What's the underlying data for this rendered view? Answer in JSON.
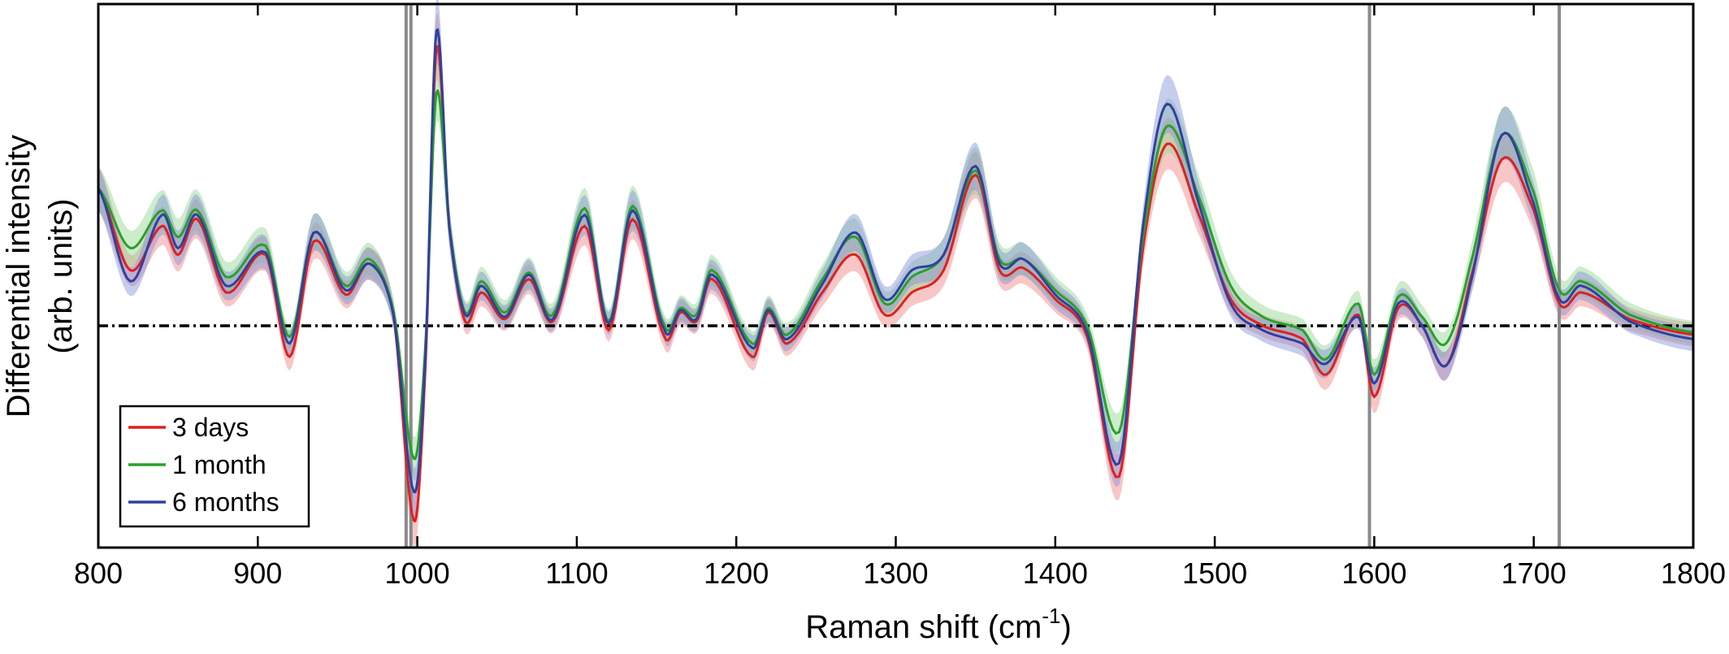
{
  "chart_data": {
    "type": "line",
    "xlabel": "Raman shift (cm",
    "xlabel_sup": "-1",
    "xlabel_end": ")",
    "ylabel_line1": "Differential intensity",
    "ylabel_line2": "(arb. units)",
    "xlim": [
      800,
      1800
    ],
    "ylim": [
      -1.0,
      1.45
    ],
    "x_ticks": [
      800,
      900,
      1000,
      1100,
      1200,
      1300,
      1400,
      1500,
      1600,
      1700,
      1800
    ],
    "y_ticks_labeled": false,
    "grid": false,
    "legend_position": "bottom-left",
    "reference_line": {
      "y": 0,
      "style": "dash-dot",
      "color": "#000000"
    },
    "vertical_lines": [
      993,
      996,
      1597,
      1716
    ],
    "series": [
      {
        "name": "3 days",
        "color": "#e02020",
        "band_color": "#f08080",
        "points": [
          [
            800,
            0.62
          ],
          [
            820,
            0.25
          ],
          [
            840,
            0.45
          ],
          [
            850,
            0.32
          ],
          [
            862,
            0.48
          ],
          [
            880,
            0.15
          ],
          [
            905,
            0.32
          ],
          [
            920,
            -0.14
          ],
          [
            935,
            0.38
          ],
          [
            955,
            0.14
          ],
          [
            970,
            0.28
          ],
          [
            985,
            0.05
          ],
          [
            998,
            -0.88
          ],
          [
            1005,
            -0.2
          ],
          [
            1012,
            1.25
          ],
          [
            1020,
            0.45
          ],
          [
            1030,
            0.02
          ],
          [
            1040,
            0.15
          ],
          [
            1055,
            0.03
          ],
          [
            1070,
            0.21
          ],
          [
            1085,
            0.02
          ],
          [
            1105,
            0.45
          ],
          [
            1120,
            -0.02
          ],
          [
            1135,
            0.48
          ],
          [
            1155,
            -0.05
          ],
          [
            1165,
            0.06
          ],
          [
            1175,
            0.02
          ],
          [
            1185,
            0.21
          ],
          [
            1210,
            -0.14
          ],
          [
            1220,
            0.06
          ],
          [
            1232,
            -0.08
          ],
          [
            1255,
            0.16
          ],
          [
            1275,
            0.32
          ],
          [
            1293,
            0.05
          ],
          [
            1310,
            0.15
          ],
          [
            1330,
            0.25
          ],
          [
            1350,
            0.68
          ],
          [
            1365,
            0.25
          ],
          [
            1380,
            0.26
          ],
          [
            1400,
            0.12
          ],
          [
            1420,
            -0.05
          ],
          [
            1440,
            -0.68
          ],
          [
            1455,
            0.35
          ],
          [
            1470,
            0.82
          ],
          [
            1490,
            0.5
          ],
          [
            1510,
            0.12
          ],
          [
            1530,
            0.0
          ],
          [
            1555,
            -0.06
          ],
          [
            1570,
            -0.22
          ],
          [
            1590,
            0.05
          ],
          [
            1600,
            -0.32
          ],
          [
            1615,
            0.08
          ],
          [
            1630,
            0.0
          ],
          [
            1645,
            -0.18
          ],
          [
            1660,
            0.2
          ],
          [
            1680,
            0.75
          ],
          [
            1700,
            0.52
          ],
          [
            1716,
            0.1
          ],
          [
            1730,
            0.15
          ],
          [
            1760,
            0.03
          ],
          [
            1800,
            -0.04
          ]
        ]
      },
      {
        "name": "1 month",
        "color": "#2aa02a",
        "band_color": "#8fd48f",
        "points": [
          [
            800,
            0.62
          ],
          [
            820,
            0.35
          ],
          [
            840,
            0.52
          ],
          [
            850,
            0.4
          ],
          [
            862,
            0.52
          ],
          [
            880,
            0.22
          ],
          [
            905,
            0.36
          ],
          [
            920,
            -0.05
          ],
          [
            935,
            0.42
          ],
          [
            955,
            0.18
          ],
          [
            970,
            0.3
          ],
          [
            985,
            0.07
          ],
          [
            998,
            -0.6
          ],
          [
            1005,
            -0.1
          ],
          [
            1012,
            1.05
          ],
          [
            1020,
            0.45
          ],
          [
            1030,
            0.06
          ],
          [
            1040,
            0.2
          ],
          [
            1055,
            0.06
          ],
          [
            1070,
            0.24
          ],
          [
            1085,
            0.05
          ],
          [
            1105,
            0.53
          ],
          [
            1120,
            0.02
          ],
          [
            1135,
            0.54
          ],
          [
            1155,
            0.0
          ],
          [
            1165,
            0.08
          ],
          [
            1175,
            0.05
          ],
          [
            1185,
            0.25
          ],
          [
            1210,
            -0.08
          ],
          [
            1220,
            0.08
          ],
          [
            1232,
            -0.04
          ],
          [
            1255,
            0.22
          ],
          [
            1275,
            0.4
          ],
          [
            1293,
            0.1
          ],
          [
            1310,
            0.22
          ],
          [
            1330,
            0.32
          ],
          [
            1350,
            0.7
          ],
          [
            1365,
            0.3
          ],
          [
            1380,
            0.3
          ],
          [
            1400,
            0.16
          ],
          [
            1420,
            0.0
          ],
          [
            1440,
            -0.48
          ],
          [
            1455,
            0.4
          ],
          [
            1470,
            0.9
          ],
          [
            1490,
            0.58
          ],
          [
            1510,
            0.18
          ],
          [
            1530,
            0.04
          ],
          [
            1555,
            -0.02
          ],
          [
            1570,
            -0.15
          ],
          [
            1590,
            0.1
          ],
          [
            1600,
            -0.22
          ],
          [
            1615,
            0.13
          ],
          [
            1630,
            0.04
          ],
          [
            1645,
            -0.08
          ],
          [
            1660,
            0.27
          ],
          [
            1680,
            0.86
          ],
          [
            1700,
            0.6
          ],
          [
            1716,
            0.16
          ],
          [
            1730,
            0.2
          ],
          [
            1760,
            0.05
          ],
          [
            1800,
            -0.03
          ]
        ]
      },
      {
        "name": "6 months",
        "color": "#3040a0",
        "band_color": "#8090d8",
        "points": [
          [
            800,
            0.62
          ],
          [
            820,
            0.2
          ],
          [
            840,
            0.5
          ],
          [
            850,
            0.35
          ],
          [
            862,
            0.5
          ],
          [
            880,
            0.18
          ],
          [
            905,
            0.33
          ],
          [
            920,
            -0.08
          ],
          [
            935,
            0.42
          ],
          [
            955,
            0.16
          ],
          [
            970,
            0.28
          ],
          [
            985,
            0.05
          ],
          [
            998,
            -0.75
          ],
          [
            1005,
            -0.15
          ],
          [
            1012,
            1.33
          ],
          [
            1020,
            0.45
          ],
          [
            1030,
            0.05
          ],
          [
            1040,
            0.18
          ],
          [
            1055,
            0.04
          ],
          [
            1070,
            0.23
          ],
          [
            1085,
            0.03
          ],
          [
            1105,
            0.5
          ],
          [
            1120,
            0.01
          ],
          [
            1135,
            0.52
          ],
          [
            1155,
            -0.02
          ],
          [
            1165,
            0.07
          ],
          [
            1175,
            0.03
          ],
          [
            1185,
            0.23
          ],
          [
            1210,
            -0.1
          ],
          [
            1220,
            0.07
          ],
          [
            1232,
            -0.06
          ],
          [
            1255,
            0.2
          ],
          [
            1275,
            0.42
          ],
          [
            1293,
            0.12
          ],
          [
            1310,
            0.25
          ],
          [
            1330,
            0.32
          ],
          [
            1350,
            0.72
          ],
          [
            1365,
            0.28
          ],
          [
            1380,
            0.3
          ],
          [
            1400,
            0.14
          ],
          [
            1420,
            -0.03
          ],
          [
            1440,
            -0.62
          ],
          [
            1455,
            0.45
          ],
          [
            1470,
            1.0
          ],
          [
            1490,
            0.55
          ],
          [
            1510,
            0.1
          ],
          [
            1530,
            -0.02
          ],
          [
            1555,
            -0.08
          ],
          [
            1570,
            -0.17
          ],
          [
            1590,
            0.04
          ],
          [
            1600,
            -0.26
          ],
          [
            1615,
            0.1
          ],
          [
            1630,
            0.0
          ],
          [
            1645,
            -0.18
          ],
          [
            1660,
            0.18
          ],
          [
            1680,
            0.86
          ],
          [
            1700,
            0.55
          ],
          [
            1716,
            0.12
          ],
          [
            1730,
            0.18
          ],
          [
            1760,
            0.02
          ],
          [
            1800,
            -0.06
          ]
        ]
      }
    ]
  }
}
